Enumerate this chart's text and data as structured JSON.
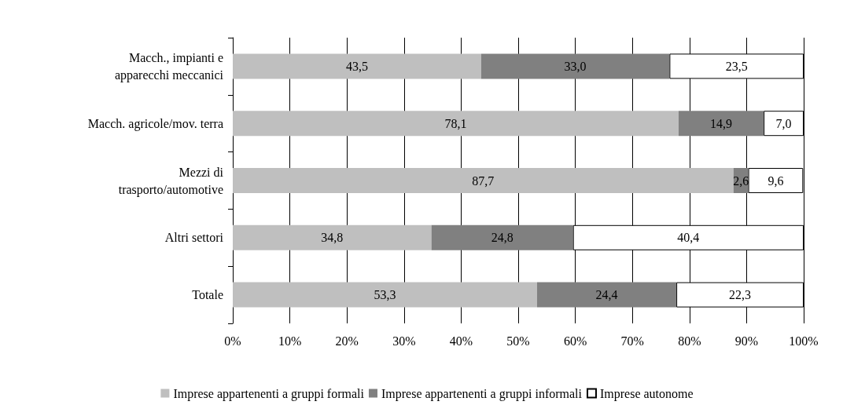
{
  "chart_data": {
    "type": "bar",
    "orientation": "horizontal",
    "stacked": true,
    "categories": [
      "Macch., impianti e\napparecchi meccanici",
      "Macch. agricole/mov. terra",
      "Mezzi di\ntrasporto/automotive",
      "Altri settori",
      "Totale"
    ],
    "series": [
      {
        "name": "Imprese appartenenti a gruppi formali",
        "color": "#bfbfbf",
        "values": [
          43.5,
          78.1,
          87.7,
          34.8,
          53.3
        ],
        "value_labels": [
          "43,5",
          "78,1",
          "87,7",
          "34,8",
          "53,3"
        ]
      },
      {
        "name": "Imprese appartenenti a gruppi informali",
        "color": "#808080",
        "values": [
          33.0,
          14.9,
          2.6,
          24.8,
          24.4
        ],
        "value_labels": [
          "33,0",
          "14,9",
          "2,6",
          "24,8",
          "24,4"
        ]
      },
      {
        "name": "Imprese autonome",
        "color": "#ffffff",
        "values": [
          23.5,
          7.0,
          9.6,
          40.4,
          22.3
        ],
        "value_labels": [
          "23,5",
          "7,0",
          "9,6",
          "40,4",
          "22,3"
        ]
      }
    ],
    "xlim": [
      0,
      100
    ],
    "xticks": [
      {
        "value": 0,
        "label": "0%"
      },
      {
        "value": 10,
        "label": "10%"
      },
      {
        "value": 20,
        "label": "20%"
      },
      {
        "value": 30,
        "label": "30%"
      },
      {
        "value": 40,
        "label": "40%"
      },
      {
        "value": 50,
        "label": "50%"
      },
      {
        "value": 60,
        "label": "60%"
      },
      {
        "value": 70,
        "label": "70%"
      },
      {
        "value": 80,
        "label": "80%"
      },
      {
        "value": 90,
        "label": "90%"
      },
      {
        "value": 100,
        "label": "100%"
      }
    ],
    "grid": "x",
    "legend": "bottom"
  }
}
